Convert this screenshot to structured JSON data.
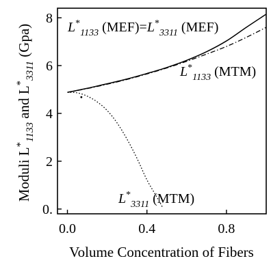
{
  "chart_data": {
    "type": "line",
    "title": "",
    "xlabel": "Volume Concentration of Fibers",
    "ylabel": {
      "main": "Moduli L",
      "sub1": "1133",
      "mid": "and L",
      "sub2": "3311",
      "unit": "(Gpa)",
      "star": "*"
    },
    "xlim": [
      -0.05,
      1.0
    ],
    "ylim": [
      -0.2,
      8.4
    ],
    "x_ticks": [
      0.0,
      0.4,
      0.8
    ],
    "x_tick_labels": [
      "0.0",
      "0.4",
      "0.8"
    ],
    "y_ticks": [
      0,
      2,
      4,
      6,
      8
    ],
    "y_tick_labels": [
      "0.",
      "2",
      "4",
      "6",
      "8"
    ],
    "grid": false,
    "series": [
      {
        "style": "solid",
        "x": [
          0.0,
          0.1,
          0.2,
          0.3,
          0.4,
          0.5,
          0.6,
          0.7,
          0.8,
          0.9,
          1.0
        ],
        "y": [
          4.88,
          5.05,
          5.24,
          5.44,
          5.67,
          5.92,
          6.22,
          6.58,
          7.03,
          7.6,
          8.15
        ]
      },
      {
        "style": "dash-dot",
        "x": [
          0.0,
          0.1,
          0.2,
          0.3,
          0.4,
          0.5,
          0.6,
          0.7,
          0.8,
          0.9,
          1.0
        ],
        "y": [
          4.88,
          5.04,
          5.22,
          5.42,
          5.65,
          5.9,
          6.18,
          6.48,
          6.8,
          7.18,
          7.6
        ]
      },
      {
        "style": "dotted",
        "x": [
          0.0,
          0.05,
          0.1,
          0.15,
          0.2,
          0.25,
          0.3,
          0.35,
          0.4,
          0.45,
          0.48
        ],
        "y": [
          4.88,
          4.86,
          4.72,
          4.48,
          4.12,
          3.6,
          2.92,
          2.12,
          1.22,
          0.5,
          0.05
        ]
      }
    ],
    "annotations": [
      {
        "id": "mef",
        "parts": [
          {
            "t": "L",
            "k": "n"
          },
          {
            "t": "*",
            "k": "sup"
          },
          {
            "t": "1133",
            "k": "sub"
          },
          {
            "t": " (MEF)=",
            "k": "n"
          },
          {
            "t": "L",
            "k": "n"
          },
          {
            "t": "*",
            "k": "sup"
          },
          {
            "t": "3311",
            "k": "sub"
          },
          {
            "t": " (MEF)",
            "k": "n"
          }
        ]
      },
      {
        "id": "mtm1133",
        "parts": [
          {
            "t": "L",
            "k": "n"
          },
          {
            "t": "*",
            "k": "sup"
          },
          {
            "t": "1133",
            "k": "sub"
          },
          {
            "t": " (MTM)",
            "k": "n"
          }
        ]
      },
      {
        "id": "mtm3311",
        "parts": [
          {
            "t": "L",
            "k": "n"
          },
          {
            "t": "*",
            "k": "sup"
          },
          {
            "t": "3311",
            "k": "sub"
          },
          {
            "t": " (MTM)",
            "k": "n"
          }
        ]
      }
    ],
    "stray_point": {
      "x": 0.07,
      "y": 4.68
    }
  }
}
